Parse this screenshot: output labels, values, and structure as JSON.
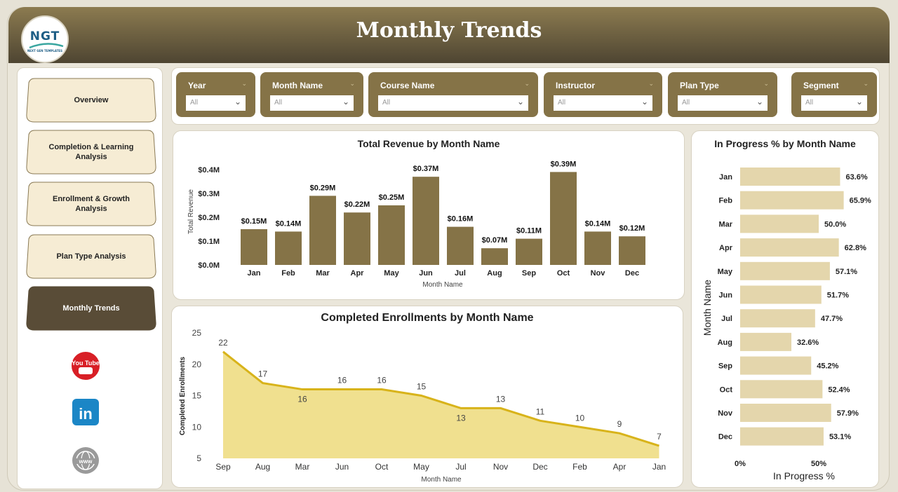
{
  "header": {
    "title": "Monthly Trends",
    "logo_text": "NGT",
    "logo_subtext": "NEXT GEN TEMPLATES"
  },
  "nav": [
    {
      "label": "Overview",
      "active": false
    },
    {
      "label": "Completion & Learning Analysis",
      "active": false
    },
    {
      "label": "Enrollment & Growth Analysis",
      "active": false
    },
    {
      "label": "Plan Type Analysis",
      "active": false
    },
    {
      "label": "Monthly Trends",
      "active": true
    }
  ],
  "social": [
    {
      "icon": "youtube-icon",
      "text": "You Tube"
    },
    {
      "icon": "linkedin-icon",
      "text": "in"
    },
    {
      "icon": "website-icon",
      "text": "www"
    }
  ],
  "filters": [
    {
      "label": "Year",
      "value": "All"
    },
    {
      "label": "Month Name",
      "value": "All"
    },
    {
      "label": "Course Name",
      "value": "All"
    },
    {
      "label": "Instructor",
      "value": "All"
    },
    {
      "label": "Plan Type",
      "value": "All"
    },
    {
      "label": "Segment",
      "value": "All"
    }
  ],
  "colors": {
    "bar": "#857347",
    "hbar": "#e4d6ac",
    "line": "#d8b31a",
    "area": "#f0e08f",
    "active_nav": "#594c37",
    "nav": "#f6ecd4"
  },
  "chart_data": [
    {
      "type": "bar",
      "title": "Total Revenue by Month Name",
      "xlabel": "Month Name",
      "ylabel": "Total Revenue",
      "categories": [
        "Jan",
        "Feb",
        "Mar",
        "Apr",
        "May",
        "Jun",
        "Jul",
        "Aug",
        "Sep",
        "Oct",
        "Nov",
        "Dec"
      ],
      "values": [
        0.15,
        0.14,
        0.29,
        0.22,
        0.25,
        0.37,
        0.16,
        0.07,
        0.11,
        0.39,
        0.14,
        0.12
      ],
      "data_labels": [
        "$0.15M",
        "$0.14M",
        "$0.29M",
        "$0.22M",
        "$0.25M",
        "$0.37M",
        "$0.16M",
        "$0.07M",
        "$0.11M",
        "$0.39M",
        "$0.14M",
        "$0.12M"
      ],
      "ylim": [
        0,
        0.4
      ],
      "yticks": [
        0,
        0.1,
        0.2,
        0.3,
        0.4
      ],
      "ytick_labels": [
        "$0.0M",
        "$0.1M",
        "$0.2M",
        "$0.3M",
        "$0.4M"
      ]
    },
    {
      "type": "area",
      "title": "Completed Enrollments by Month Name",
      "xlabel": "Month Name",
      "ylabel": "Completed Enrollments",
      "categories": [
        "Sep",
        "Aug",
        "Mar",
        "Jun",
        "Oct",
        "May",
        "Jul",
        "Nov",
        "Dec",
        "Feb",
        "Apr",
        "Jan"
      ],
      "values": [
        22,
        17,
        16,
        16,
        16,
        15,
        13,
        13,
        11,
        10,
        9,
        7
      ],
      "ylim": [
        5,
        25
      ],
      "yticks": [
        5,
        10,
        15,
        20,
        25
      ]
    },
    {
      "type": "bar",
      "orientation": "horizontal",
      "title": "In Progress % by Month Name",
      "xlabel": "In Progress %",
      "ylabel": "Month Name",
      "categories": [
        "Jan",
        "Feb",
        "Mar",
        "Apr",
        "May",
        "Jun",
        "Jul",
        "Aug",
        "Sep",
        "Oct",
        "Nov",
        "Dec"
      ],
      "values": [
        63.6,
        65.9,
        50.0,
        62.8,
        57.1,
        51.7,
        47.7,
        32.6,
        45.2,
        52.4,
        57.9,
        53.1
      ],
      "data_labels": [
        "63.6%",
        "65.9%",
        "50.0%",
        "62.8%",
        "57.1%",
        "51.7%",
        "47.7%",
        "32.6%",
        "45.2%",
        "52.4%",
        "57.9%",
        "53.1%"
      ],
      "xticks": [
        0,
        50
      ],
      "xtick_labels": [
        "0%",
        "50%"
      ]
    }
  ]
}
